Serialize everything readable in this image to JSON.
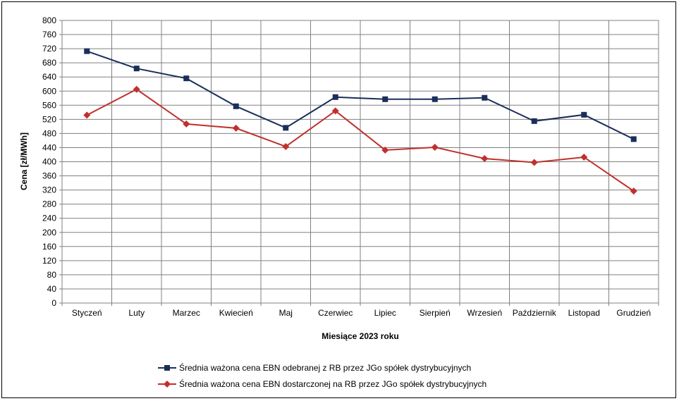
{
  "chart_data": {
    "type": "line",
    "title": "",
    "xlabel": "Miesiące 2023  roku",
    "ylabel": "Cena [zł/MWh]",
    "ylim": [
      0,
      800
    ],
    "ytick_step": 40,
    "grid": true,
    "legend_position": "bottom",
    "categories": [
      "Styczeń",
      "Luty",
      "Marzec",
      "Kwiecień",
      "Maj",
      "Czerwiec",
      "Lipiec",
      "Sierpień",
      "Wrzesień",
      "Październik",
      "Listopad",
      "Grudzień"
    ],
    "series": [
      {
        "name": "Średnia ważona cena EBN odebranej z RB przez JGo spółek dystrybucyjnych",
        "color": "#1a2e5a",
        "marker": "square",
        "values": [
          713,
          664,
          636,
          557,
          496,
          583,
          577,
          577,
          581,
          515,
          533,
          464
        ]
      },
      {
        "name": "Średnia ważona cena EBN dostarczonej na RB przez JGo spółek dystrybucyjnych",
        "color": "#c0302c",
        "marker": "diamond",
        "values": [
          532,
          605,
          507,
          495,
          443,
          544,
          433,
          441,
          409,
          398,
          413,
          317
        ]
      }
    ]
  }
}
